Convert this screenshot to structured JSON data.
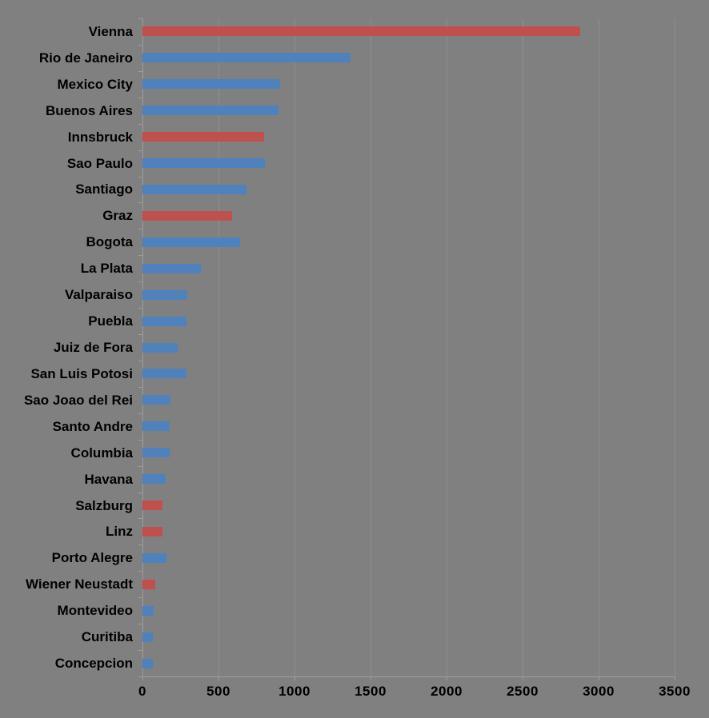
{
  "chart_data": {
    "type": "bar",
    "orientation": "horizontal",
    "categories": [
      "Vienna",
      "Rio de Janeiro",
      "Mexico City",
      "Buenos Aires",
      "Innsbruck",
      "Sao Paulo",
      "Santiago",
      "Graz",
      "Bogota",
      "La Plata",
      "Valparaiso",
      "Puebla",
      "Juiz de Fora",
      "San Luis Potosi",
      "Sao Joao del Rei",
      "Santo Andre",
      "Columbia",
      "Havana",
      "Salzburg",
      "Linz",
      "Porto Alegre",
      "Wiener Neustadt",
      "Montevideo",
      "Curitiba",
      "Concepcion"
    ],
    "values": [
      2880,
      1370,
      905,
      895,
      800,
      805,
      685,
      590,
      640,
      385,
      295,
      290,
      230,
      290,
      185,
      180,
      180,
      150,
      130,
      130,
      160,
      85,
      75,
      70,
      70
    ],
    "bar_color_keys": [
      "red",
      "blue",
      "blue",
      "blue",
      "red",
      "blue",
      "blue",
      "red",
      "blue",
      "blue",
      "blue",
      "blue",
      "blue",
      "blue",
      "blue",
      "blue",
      "blue",
      "blue",
      "red",
      "red",
      "blue",
      "red",
      "blue",
      "blue",
      "blue"
    ],
    "colors": {
      "red": "#C0504D",
      "blue": "#4F81BD",
      "background": "#808080",
      "gridline": "#8F8F8F",
      "axis": "#9E9E9E",
      "text": "#000000"
    },
    "x_ticks": [
      "0",
      "500",
      "1000",
      "1500",
      "2000",
      "2500",
      "3000",
      "3500"
    ],
    "xlim": [
      0,
      3500
    ],
    "xlabel": "",
    "ylabel": "",
    "grid": "vertical",
    "legend": "none",
    "title": ""
  }
}
